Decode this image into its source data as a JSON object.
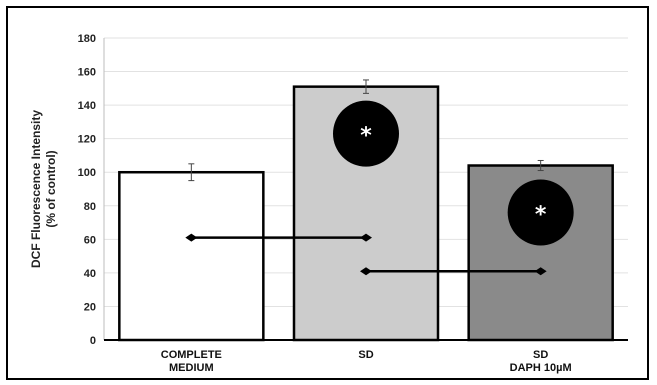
{
  "chart_data": {
    "type": "bar",
    "categories": [
      [
        "COMPLETE",
        "MEDIUM"
      ],
      [
        "SD"
      ],
      [
        "SD",
        "DAPH 10µM"
      ]
    ],
    "values": [
      100,
      151,
      104
    ],
    "errors": [
      5,
      4,
      3
    ],
    "bar_colors": [
      "#ffffff",
      "#cccccc",
      "#8a8a8a"
    ],
    "ylabel_lines": [
      "DCF Fluorescence Intensity",
      "(% of control)"
    ],
    "ylim": [
      0,
      180
    ],
    "yticks": [
      0,
      20,
      40,
      60,
      80,
      100,
      120,
      140,
      160,
      180
    ],
    "grid": true,
    "significance_markers": [
      {
        "bar": 1,
        "symbol": "*",
        "y": 123
      },
      {
        "bar": 2,
        "symbol": "*",
        "y": 76
      }
    ],
    "comparison_lines": [
      {
        "from": 0,
        "to": 1,
        "y": 61
      },
      {
        "from": 1,
        "to": 2,
        "y": 41
      }
    ]
  }
}
